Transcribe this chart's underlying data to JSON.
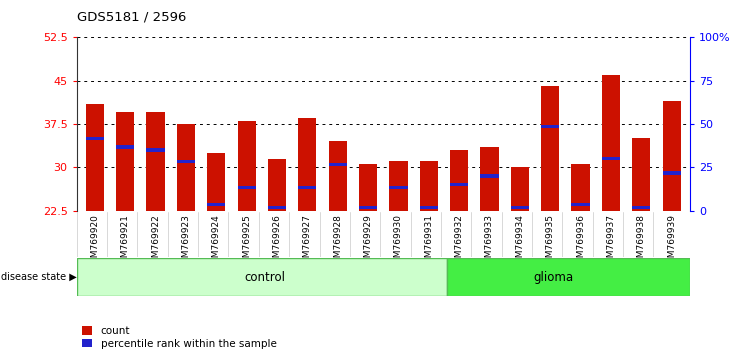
{
  "title": "GDS5181 / 2596",
  "samples": [
    "GSM769920",
    "GSM769921",
    "GSM769922",
    "GSM769923",
    "GSM769924",
    "GSM769925",
    "GSM769926",
    "GSM769927",
    "GSM769928",
    "GSM769929",
    "GSM769930",
    "GSM769931",
    "GSM769932",
    "GSM769933",
    "GSM769934",
    "GSM769935",
    "GSM769936",
    "GSM769937",
    "GSM769938",
    "GSM769939"
  ],
  "bar_heights": [
    41.0,
    39.5,
    39.5,
    37.5,
    32.5,
    38.0,
    31.5,
    38.5,
    34.5,
    30.5,
    31.0,
    31.0,
    33.0,
    33.5,
    30.0,
    44.0,
    30.5,
    46.0,
    35.0,
    41.5
  ],
  "blue_marker_pos": [
    35.0,
    33.5,
    33.0,
    31.0,
    23.5,
    26.5,
    23.0,
    26.5,
    30.5,
    23.0,
    26.5,
    23.0,
    27.0,
    28.5,
    23.0,
    37.0,
    23.5,
    31.5,
    23.0,
    29.0
  ],
  "control_count": 12,
  "glioma_count": 8,
  "ylim_left": [
    22.5,
    52.5
  ],
  "ylim_right": [
    0,
    100
  ],
  "yticks_left": [
    22.5,
    30.0,
    37.5,
    45.0,
    52.5
  ],
  "ytick_labels_left": [
    "22.5",
    "30",
    "37.5",
    "45",
    "52.5"
  ],
  "yticks_right_vals": [
    0,
    25,
    50,
    75,
    100
  ],
  "ytick_labels_right": [
    "0",
    "25",
    "50",
    "75",
    "100%"
  ],
  "bar_color": "#cc1100",
  "blue_color": "#2222cc",
  "control_bg": "#ccffcc",
  "glioma_bg": "#44ee44",
  "bar_bottom": 22.5,
  "legend_count": "count",
  "legend_pct": "percentile rank within the sample",
  "disease_label": "disease state",
  "control_label": "control",
  "glioma_label": "glioma",
  "spine_color": "#333333",
  "grey_bg": "#d8d8d8"
}
